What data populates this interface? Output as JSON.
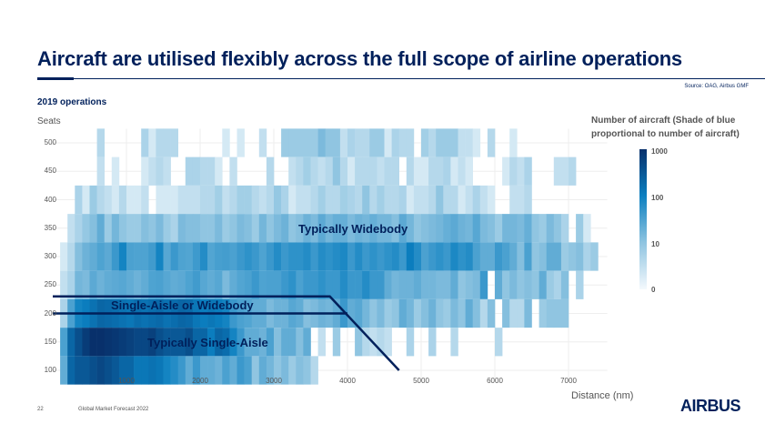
{
  "header": {
    "title": "Aircraft are utilised flexibly across the full scope of airline operations",
    "source": "Source: OAG, Airbus GMF",
    "subtitle": "2019 operations"
  },
  "footer": {
    "page_number": "22",
    "doc_title": "Global Market Forecast 2022",
    "logo": "AIRBUS"
  },
  "colors": {
    "brand": "#00205b",
    "scale_max": "#08306b",
    "scale_mid": "#0b7fc0",
    "scale_min": "#f4f9fd"
  },
  "chart_data": {
    "type": "heatmap",
    "title": "2019 operations",
    "xlabel": "Distance (nm)",
    "ylabel": "Seats",
    "x_bin_size": 100,
    "x_start": 0,
    "xlim": [
      0,
      7600
    ],
    "ylim": [
      75,
      525
    ],
    "x_ticks": [
      1000,
      2000,
      3000,
      4000,
      5000,
      6000,
      7000
    ],
    "x_tick_labels": [
      "1000",
      "2000",
      "3000",
      "4000",
      "5000",
      "6000",
      "7000"
    ],
    "y_ticks": [
      100,
      150,
      200,
      250,
      300,
      350,
      400,
      450,
      500
    ],
    "y_tick_labels": [
      "100",
      "150",
      "200",
      "250",
      "300",
      "350",
      "400",
      "450",
      "500"
    ],
    "colorbar": {
      "title": "Number of aircraft (Shade of blue proportional to number of aircraft)",
      "scale": "log",
      "ticks": [
        0,
        10,
        100,
        1000
      ],
      "tick_labels": [
        "0",
        "10",
        "100",
        "1000"
      ]
    },
    "rows": [
      {
        "seats": 500,
        "values": [
          0,
          0,
          0,
          0,
          0,
          0,
          3,
          0,
          0,
          0,
          0,
          0,
          4,
          1,
          3,
          3,
          3,
          0,
          0,
          0,
          0,
          0,
          0,
          1,
          0,
          1,
          0,
          0,
          2,
          0,
          0,
          6,
          6,
          6,
          6,
          6,
          12,
          8,
          8,
          2,
          4,
          3,
          3,
          6,
          6,
          1,
          4,
          3,
          3,
          0,
          5,
          3,
          6,
          6,
          6,
          2,
          2,
          1,
          0,
          3,
          0,
          0,
          1,
          0,
          0,
          0,
          0,
          0,
          0,
          0,
          0,
          0,
          0,
          0,
          0,
          0
        ]
      },
      {
        "seats": 450,
        "values": [
          0,
          0,
          0,
          0,
          0,
          0,
          2,
          0,
          1,
          0,
          0,
          0,
          1,
          2,
          3,
          2,
          0,
          0,
          4,
          4,
          3,
          3,
          1,
          0,
          2,
          0,
          0,
          0,
          0,
          3,
          0,
          0,
          2,
          3,
          5,
          3,
          2,
          3,
          8,
          3,
          1,
          3,
          3,
          3,
          2,
          3,
          3,
          0,
          3,
          1,
          1,
          3,
          3,
          4,
          1,
          2,
          1,
          0,
          0,
          0,
          0,
          1,
          3,
          2,
          4,
          0,
          0,
          0,
          2,
          2,
          3,
          0,
          0,
          0,
          0,
          0
        ]
      },
      {
        "seats": 400,
        "values": [
          0,
          0,
          0,
          4,
          1,
          6,
          3,
          2,
          1,
          3,
          1,
          1,
          2,
          0,
          1,
          1,
          1,
          2,
          2,
          2,
          3,
          3,
          5,
          2,
          3,
          5,
          5,
          3,
          2,
          3,
          7,
          4,
          1,
          2,
          2,
          3,
          5,
          3,
          3,
          5,
          4,
          3,
          8,
          3,
          5,
          3,
          3,
          4,
          1,
          2,
          2,
          3,
          8,
          3,
          3,
          1,
          2,
          4,
          2,
          1,
          0,
          0,
          2,
          2,
          3,
          0,
          0,
          0,
          0,
          0,
          0,
          0,
          0,
          0,
          0,
          0
        ]
      },
      {
        "seats": 350,
        "values": [
          0,
          0,
          2,
          4,
          7,
          10,
          20,
          6,
          14,
          8,
          6,
          6,
          10,
          8,
          12,
          6,
          4,
          12,
          10,
          10,
          8,
          8,
          12,
          6,
          8,
          12,
          10,
          6,
          14,
          8,
          12,
          16,
          8,
          10,
          16,
          12,
          22,
          14,
          18,
          18,
          12,
          16,
          14,
          18,
          14,
          14,
          10,
          22,
          14,
          8,
          10,
          12,
          14,
          18,
          22,
          16,
          14,
          24,
          12,
          10,
          6,
          14,
          14,
          12,
          18,
          8,
          6,
          12,
          8,
          4,
          0,
          6,
          1,
          0,
          0,
          0
        ]
      },
      {
        "seats": 300,
        "values": [
          0,
          1,
          3,
          10,
          16,
          20,
          28,
          22,
          40,
          80,
          30,
          28,
          28,
          36,
          80,
          24,
          40,
          28,
          26,
          38,
          60,
          26,
          32,
          34,
          30,
          40,
          50,
          40,
          28,
          40,
          60,
          40,
          50,
          50,
          60,
          40,
          60,
          50,
          60,
          70,
          40,
          60,
          40,
          50,
          40,
          50,
          60,
          40,
          100,
          60,
          30,
          40,
          50,
          40,
          70,
          50,
          60,
          30,
          20,
          20,
          40,
          30,
          20,
          10,
          30,
          8,
          10,
          20,
          20,
          6,
          8,
          10,
          4,
          6,
          0,
          0
        ]
      },
      {
        "seats": 250,
        "values": [
          0,
          2,
          4,
          14,
          12,
          22,
          16,
          20,
          22,
          24,
          20,
          16,
          20,
          28,
          30,
          24,
          20,
          22,
          28,
          36,
          24,
          20,
          24,
          12,
          20,
          26,
          30,
          40,
          28,
          30,
          30,
          40,
          50,
          30,
          40,
          40,
          50,
          40,
          40,
          60,
          40,
          40,
          60,
          40,
          40,
          20,
          14,
          16,
          16,
          20,
          14,
          14,
          12,
          12,
          20,
          8,
          10,
          12,
          40,
          0,
          20,
          8,
          12,
          8,
          10,
          8,
          20,
          6,
          4,
          10,
          0,
          4,
          0,
          0,
          0,
          0
        ]
      },
      {
        "seats": 200,
        "values": [
          0,
          4,
          30,
          80,
          100,
          140,
          200,
          180,
          160,
          140,
          120,
          160,
          140,
          160,
          180,
          140,
          160,
          200,
          180,
          120,
          100,
          120,
          100,
          80,
          40,
          30,
          26,
          20,
          20,
          12,
          16,
          16,
          24,
          20,
          10,
          12,
          16,
          14,
          20,
          40,
          20,
          24,
          14,
          8,
          12,
          6,
          8,
          20,
          14,
          6,
          10,
          16,
          8,
          6,
          12,
          8,
          20,
          10,
          3,
          10,
          0,
          10,
          3,
          3,
          12,
          0,
          6,
          8,
          8,
          8,
          0,
          0,
          0,
          0,
          0,
          0
        ]
      },
      {
        "seats": 150,
        "values": [
          0,
          30,
          200,
          400,
          700,
          1000,
          1000,
          900,
          800,
          700,
          600,
          500,
          500,
          600,
          400,
          300,
          300,
          300,
          400,
          200,
          200,
          100,
          200,
          160,
          80,
          40,
          20,
          20,
          16,
          30,
          10,
          20,
          20,
          10,
          20,
          0,
          2,
          0,
          6,
          0,
          0,
          8,
          3,
          2,
          3,
          2,
          0,
          0,
          4,
          0,
          0,
          4,
          0,
          0,
          3,
          0,
          0,
          0,
          0,
          0,
          3,
          0,
          0,
          0,
          0,
          0,
          0,
          0,
          0,
          0,
          0,
          0,
          0,
          0,
          0,
          0
        ]
      },
      {
        "seats": 100,
        "values": [
          0,
          20,
          200,
          300,
          300,
          400,
          500,
          400,
          300,
          200,
          200,
          120,
          120,
          140,
          120,
          80,
          60,
          40,
          20,
          40,
          20,
          20,
          16,
          30,
          20,
          40,
          30,
          8,
          20,
          14,
          8,
          12,
          6,
          10,
          8,
          3,
          0,
          0,
          0,
          0,
          0,
          0,
          0,
          0,
          0,
          0,
          0,
          0,
          0,
          0,
          0,
          0,
          0,
          0,
          0,
          0,
          0,
          0,
          0,
          0,
          0,
          0,
          0,
          0,
          0,
          0,
          0,
          0,
          0,
          0,
          0,
          0,
          0,
          0,
          0,
          0
        ]
      }
    ],
    "annotations": [
      {
        "text": "Typically Widebody",
        "distance": 4000,
        "seats": 350
      },
      {
        "text": "Single-Aisle or Widebody",
        "distance": 1000,
        "seats": 215
      },
      {
        "text": "Typically Single-Aisle",
        "distance": 1100,
        "seats": 150
      }
    ],
    "boundary_lines": [
      {
        "name": "upper-boundary",
        "points": [
          [
            0,
            230
          ],
          [
            3760,
            230
          ],
          [
            4700,
            100
          ]
        ]
      },
      {
        "name": "lower-boundary",
        "points": [
          [
            0,
            200
          ],
          [
            4000,
            200
          ]
        ]
      }
    ]
  }
}
